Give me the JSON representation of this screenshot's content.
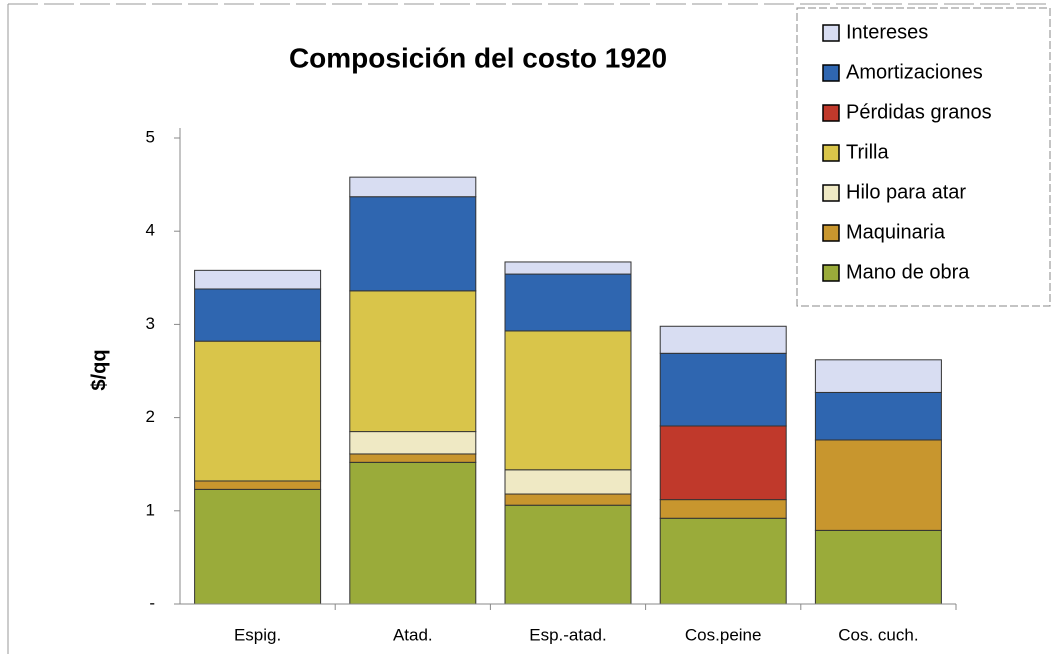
{
  "chart_data": {
    "type": "stacked_bar",
    "title": "Composición del costo 1920",
    "y_label": "$/qq",
    "categories": [
      "Espig.",
      "Atad.",
      "Esp.-atad.",
      "Cos.peine",
      "Cos. cuch."
    ],
    "series": [
      {
        "name": "Mano de obra",
        "color": "#9aab3a",
        "values": [
          1.23,
          1.52,
          1.06,
          0.92,
          0.79
        ]
      },
      {
        "name": "Maquinaria",
        "color": "#c8962e",
        "values": [
          0.09,
          0.09,
          0.12,
          0.2,
          0.97
        ]
      },
      {
        "name": "Hilo para atar",
        "color": "#efe9c4",
        "values": [
          0,
          0.24,
          0.26,
          0,
          0
        ]
      },
      {
        "name": "Trilla",
        "color": "#d9c54a",
        "values": [
          1.5,
          1.51,
          1.49,
          0,
          0
        ]
      },
      {
        "name": "Pérdidas granos",
        "color": "#c0392b",
        "values": [
          0,
          0,
          0,
          0.79,
          0
        ]
      },
      {
        "name": "Amortizaciones",
        "color": "#2f66b0",
        "values": [
          0.56,
          1.01,
          0.61,
          0.78,
          0.51
        ]
      },
      {
        "name": "Intereses",
        "color": "#d8ddf2",
        "values": [
          0.2,
          0.21,
          0.13,
          0.29,
          0.35
        ]
      }
    ],
    "ylim": [
      0,
      5
    ],
    "yticks": [
      {
        "value": 0,
        "label": "-"
      },
      1,
      2,
      3,
      4,
      5
    ],
    "grid": false
  }
}
